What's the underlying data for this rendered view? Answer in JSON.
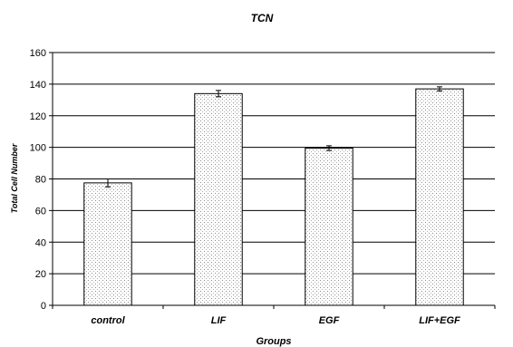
{
  "chart_data": {
    "type": "bar",
    "title": "TCN",
    "xlabel": "Groups",
    "ylabel": "Total Cell Number",
    "categories": [
      "control",
      "LIF",
      "EGF",
      "LIF+EGF"
    ],
    "values": [
      77.5,
      134,
      99.5,
      137
    ],
    "errors": [
      2.5,
      2,
      1.5,
      1.3
    ],
    "ylim": [
      0,
      160
    ],
    "yticks": [
      "0",
      "20",
      "40",
      "60",
      "80",
      "100",
      "120",
      "140",
      "160"
    ],
    "grid": true,
    "legend": "none",
    "bar_fill": "dotted light gray"
  }
}
